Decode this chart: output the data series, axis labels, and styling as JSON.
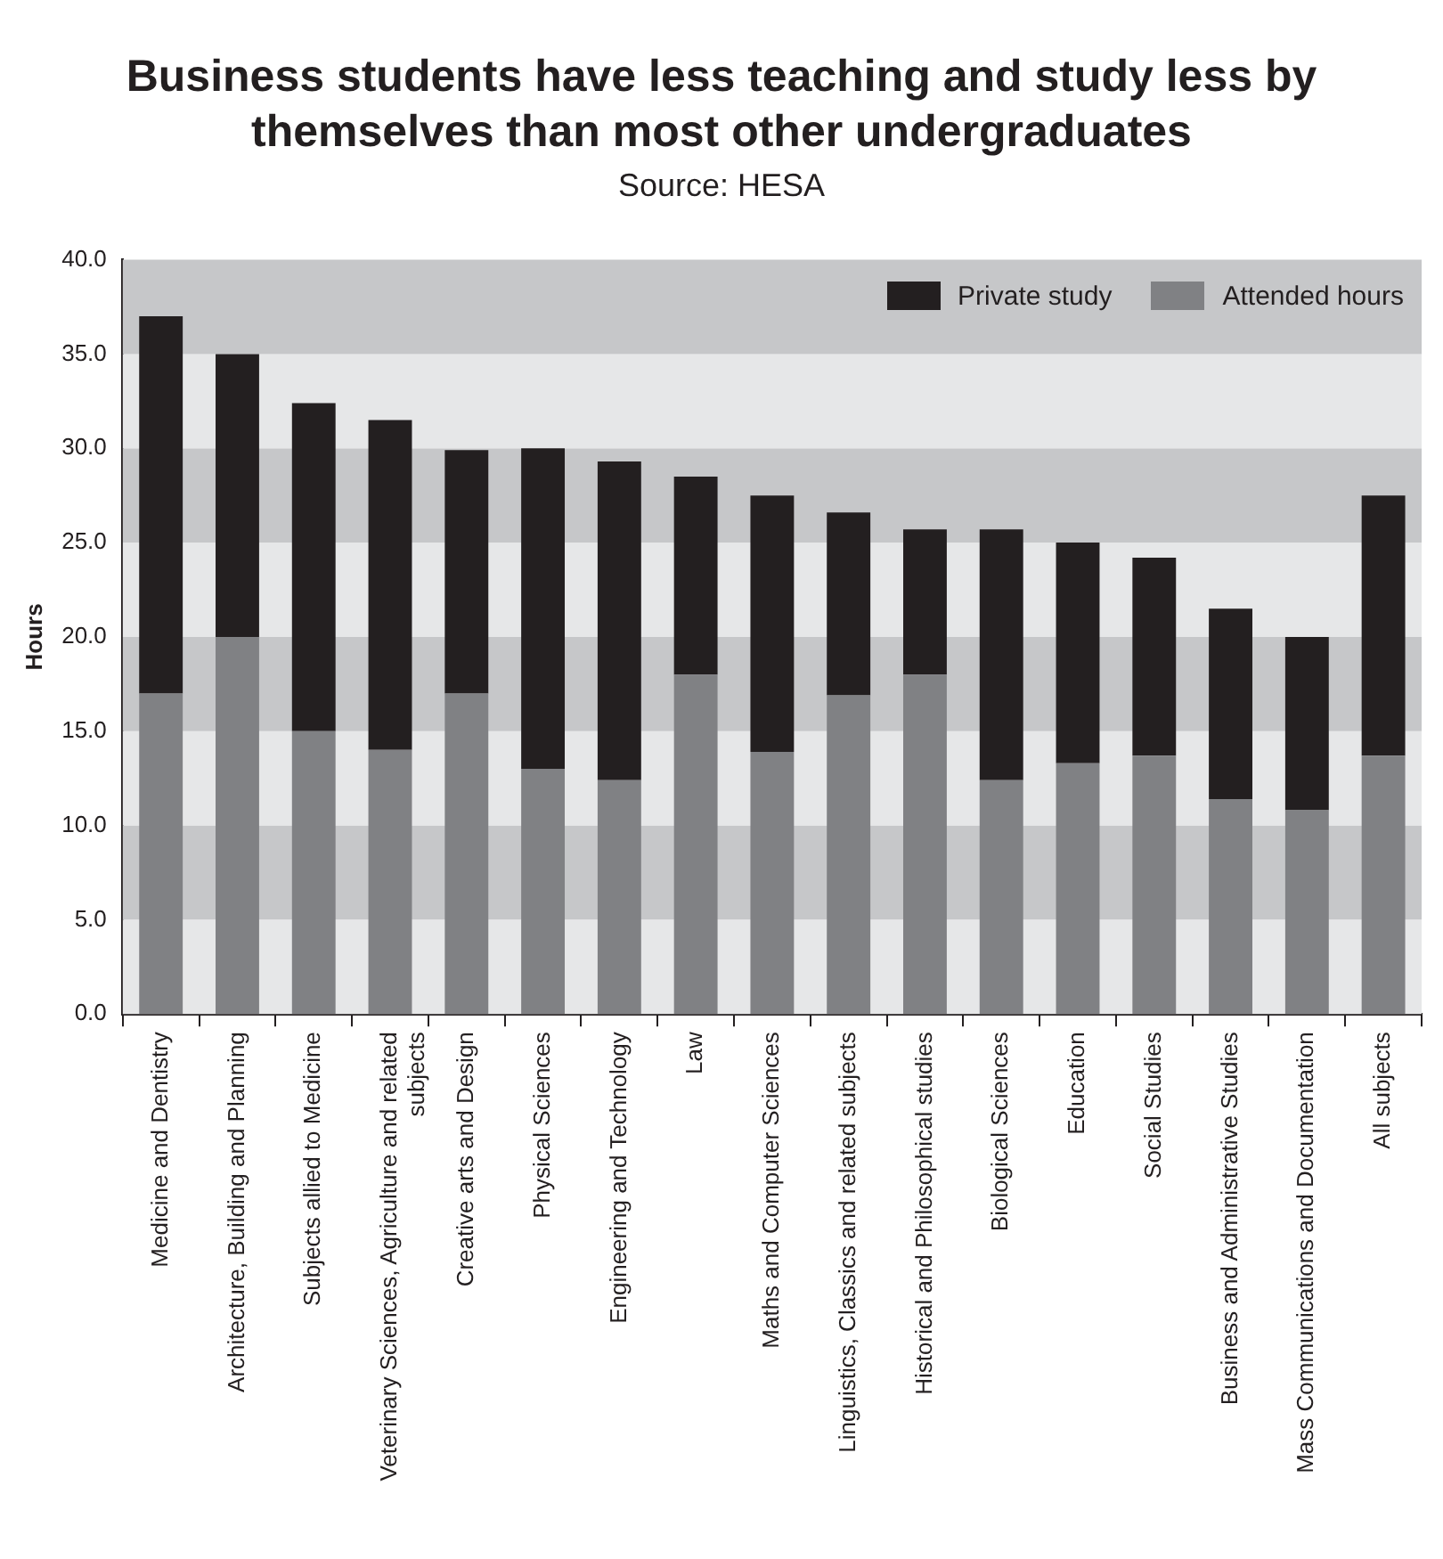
{
  "chart_data": {
    "type": "bar",
    "title": "Business students have less teaching and study less by themselves than most other undergraduates",
    "subtitle": "Source: HESA",
    "ylabel": "Hours",
    "stacked": true,
    "legend": "top right",
    "grid": false,
    "categories": [
      "Medicine and Dentistry",
      "Architecture, Building and Planning",
      "Subjects allied to Medicine",
      "Veterinary Sciences, Agriculture and related subjects",
      "Creative arts and Design",
      "Physical Sciences",
      "Engineering and Technology",
      "Law",
      "Maths and Computer Sciences",
      "Linguistics, Classics and related subjects",
      "Historical and Philosophical studies",
      "Biological Sciences",
      "Education",
      "Social Studies",
      "Business and Administrative Studies",
      "Mass Communications and Documentation",
      "All subjects"
    ],
    "series": [
      {
        "name": "Attended hours",
        "color": "#808184",
        "values": [
          17.0,
          20.0,
          15.0,
          14.0,
          17.0,
          13.0,
          12.4,
          18.0,
          13.9,
          16.9,
          18.0,
          12.4,
          13.3,
          13.7,
          11.4,
          10.8,
          13.7
        ]
      },
      {
        "name": "Private study",
        "color": "#231f20",
        "values": [
          20.0,
          15.0,
          17.4,
          17.5,
          12.9,
          17.0,
          16.9,
          10.5,
          13.6,
          9.7,
          7.7,
          13.3,
          11.7,
          10.5,
          10.1,
          9.2,
          13.8
        ]
      }
    ],
    "ylim": [
      0,
      40
    ],
    "yticks": [
      {
        "value": 0,
        "label": "0.0"
      },
      {
        "value": 5,
        "label": "5.0"
      },
      {
        "value": 10,
        "label": "10.0"
      },
      {
        "value": 15,
        "label": "15.0"
      },
      {
        "value": 20,
        "label": "20.0"
      },
      {
        "value": 25,
        "label": "25.0"
      },
      {
        "value": 30,
        "label": "30.0"
      },
      {
        "value": 35,
        "label": "35.0"
      },
      {
        "value": 40,
        "label": "40.0"
      }
    ],
    "bands": [
      {
        "axis": "y",
        "from": 0,
        "to": 5,
        "color": "#e6e7e8"
      },
      {
        "axis": "y",
        "from": 5,
        "to": 10,
        "color": "#c6c7c9"
      },
      {
        "axis": "y",
        "from": 10,
        "to": 15,
        "color": "#e6e7e8"
      },
      {
        "axis": "y",
        "from": 15,
        "to": 20,
        "color": "#c6c7c9"
      },
      {
        "axis": "y",
        "from": 20,
        "to": 25,
        "color": "#e6e7e8"
      },
      {
        "axis": "y",
        "from": 25,
        "to": 30,
        "color": "#c6c7c9"
      },
      {
        "axis": "y",
        "from": 30,
        "to": 35,
        "color": "#e6e7e8"
      },
      {
        "axis": "y",
        "from": 35,
        "to": 40,
        "color": "#c6c7c9"
      }
    ]
  }
}
